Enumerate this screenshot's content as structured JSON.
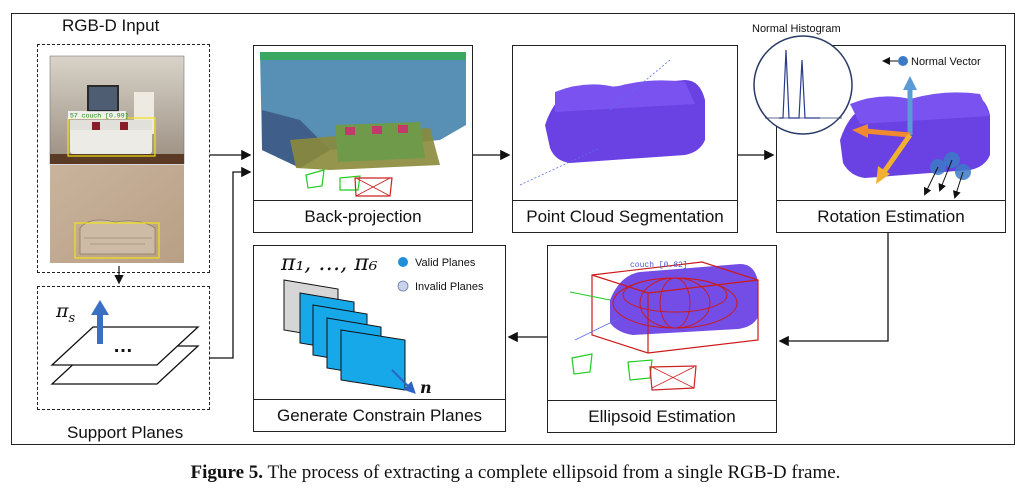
{
  "input": {
    "title": "RGB-D Input",
    "detection_label": "57 couch [0.99]"
  },
  "support": {
    "title": "Support Planes",
    "symbol": "π",
    "symbol_sub": "s",
    "dots": "…"
  },
  "panels": {
    "backprojection": "Back-projection",
    "segmentation": "Point Cloud Segmentation",
    "rotation": "Rotation Estimation",
    "ellipsoid": "Ellipsoid Estimation",
    "constrain": "Generate Constrain Planes"
  },
  "rotation": {
    "histogram_title": "Normal Histogram",
    "normal_vector": "Normal Vector"
  },
  "ellipsoid": {
    "label": "couch [0.82]"
  },
  "constrain": {
    "planes_label": "π₁, …, π₆",
    "normal_label": "n",
    "legend": [
      {
        "label": "Valid Planes",
        "color": "#1f8fd8"
      },
      {
        "label": "Invalid Planes",
        "color": "#c9d3ea"
      }
    ]
  },
  "caption": {
    "figure": "Figure 5.",
    "text": " The process of extracting a complete ellipsoid from a single RGB-D frame."
  },
  "colors": {
    "points": "#5a2ee0",
    "wire": "#d42020",
    "valid": "#17a8ea",
    "arrow": "#3a78c9"
  }
}
